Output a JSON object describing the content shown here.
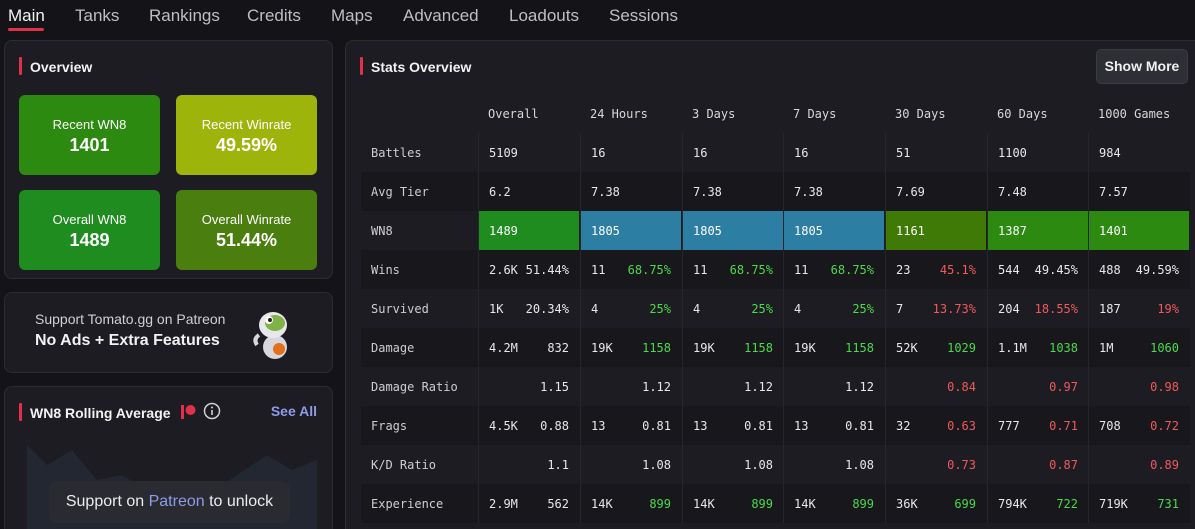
{
  "nav": {
    "tabs": [
      "Main",
      "Tanks",
      "Rankings",
      "Credits",
      "Maps",
      "Advanced",
      "Loadouts",
      "Sessions"
    ],
    "active": "Main"
  },
  "overview": {
    "title": "Overview",
    "tiles": [
      {
        "label": "Recent WN8",
        "value": "1401",
        "color": "#2c8a10"
      },
      {
        "label": "Recent Winrate",
        "value": "49.59%",
        "color": "#9db50a"
      },
      {
        "label": "Overall WN8",
        "value": "1489",
        "color": "#1f8c1f"
      },
      {
        "label": "Overall Winrate",
        "value": "51.44%",
        "color": "#4a7e0f"
      }
    ]
  },
  "patreon": {
    "line1": "Support Tomato.gg on Patreon",
    "line2": "No Ads + Extra Features",
    "icon": "tomato-mascot-icon"
  },
  "rolling": {
    "title": "WN8 Rolling Average",
    "see_all": "See All",
    "unlock_prefix": "Support on ",
    "unlock_link": "Patreon",
    "unlock_suffix": " to unlock",
    "icons": [
      "patreon-icon",
      "info-icon"
    ]
  },
  "stats": {
    "title": "Stats Overview",
    "show_more": "Show More",
    "columns": [
      "Overall",
      "24 Hours",
      "3 Days",
      "7 Days",
      "30 Days",
      "60 Days",
      "1000 Games"
    ],
    "rows": [
      {
        "label": "Battles",
        "cells": [
          [
            "5109",
            ""
          ],
          [
            "16",
            ""
          ],
          [
            "16",
            ""
          ],
          [
            "16",
            ""
          ],
          [
            "51",
            ""
          ],
          [
            "1100",
            ""
          ],
          [
            "984",
            ""
          ]
        ]
      },
      {
        "label": "Avg Tier",
        "cells": [
          [
            "6.2",
            ""
          ],
          [
            "7.38",
            ""
          ],
          [
            "7.38",
            ""
          ],
          [
            "7.38",
            ""
          ],
          [
            "7.69",
            ""
          ],
          [
            "7.48",
            ""
          ],
          [
            "7.57",
            ""
          ]
        ]
      },
      {
        "label": "WN8",
        "cells": [
          [
            "1489",
            ""
          ],
          [
            "1805",
            ""
          ],
          [
            "1805",
            ""
          ],
          [
            "1805",
            ""
          ],
          [
            "1161",
            ""
          ],
          [
            "1387",
            ""
          ],
          [
            "1401",
            ""
          ]
        ],
        "colors": [
          "#1f8c1f",
          "#2c7fa3",
          "#2c7fa3",
          "#2c7fa3",
          "#3f7a07",
          "#2c8a10",
          "#2c8a10"
        ]
      },
      {
        "label": "Wins",
        "cells": [
          [
            "2.6K",
            "51.44%"
          ],
          [
            "11",
            "68.75%"
          ],
          [
            "11",
            "68.75%"
          ],
          [
            "11",
            "68.75%"
          ],
          [
            "23",
            "45.1%"
          ],
          [
            "544",
            "49.45%"
          ],
          [
            "488",
            "49.59%"
          ]
        ],
        "tones": [
          "",
          "g",
          "g",
          "g",
          "r",
          "",
          ""
        ]
      },
      {
        "label": "Survived",
        "cells": [
          [
            "1K",
            "20.34%"
          ],
          [
            "4",
            "25%"
          ],
          [
            "4",
            "25%"
          ],
          [
            "4",
            "25%"
          ],
          [
            "7",
            "13.73%"
          ],
          [
            "204",
            "18.55%"
          ],
          [
            "187",
            "19%"
          ]
        ],
        "tones": [
          "",
          "g",
          "g",
          "g",
          "r",
          "r",
          "r"
        ]
      },
      {
        "label": "Damage",
        "cells": [
          [
            "4.2M",
            "832"
          ],
          [
            "19K",
            "1158"
          ],
          [
            "19K",
            "1158"
          ],
          [
            "19K",
            "1158"
          ],
          [
            "52K",
            "1029"
          ],
          [
            "1.1M",
            "1038"
          ],
          [
            "1M",
            "1060"
          ]
        ],
        "tones": [
          "",
          "g",
          "g",
          "g",
          "g",
          "g",
          "g"
        ]
      },
      {
        "label": "Damage Ratio",
        "cells": [
          [
            "",
            "1.15"
          ],
          [
            "",
            "1.12"
          ],
          [
            "",
            "1.12"
          ],
          [
            "",
            "1.12"
          ],
          [
            "",
            "0.84"
          ],
          [
            "",
            "0.97"
          ],
          [
            "",
            "0.98"
          ]
        ],
        "tones": [
          "",
          "",
          "",
          "",
          "r",
          "r",
          "r"
        ]
      },
      {
        "label": "Frags",
        "cells": [
          [
            "4.5K",
            "0.88"
          ],
          [
            "13",
            "0.81"
          ],
          [
            "13",
            "0.81"
          ],
          [
            "13",
            "0.81"
          ],
          [
            "32",
            "0.63"
          ],
          [
            "777",
            "0.71"
          ],
          [
            "708",
            "0.72"
          ]
        ],
        "tones": [
          "",
          "",
          "",
          "",
          "r",
          "r",
          "r"
        ]
      },
      {
        "label": "K/D Ratio",
        "cells": [
          [
            "",
            "1.1"
          ],
          [
            "",
            "1.08"
          ],
          [
            "",
            "1.08"
          ],
          [
            "",
            "1.08"
          ],
          [
            "",
            "0.73"
          ],
          [
            "",
            "0.87"
          ],
          [
            "",
            "0.89"
          ]
        ],
        "tones": [
          "",
          "",
          "",
          "",
          "r",
          "r",
          "r"
        ]
      },
      {
        "label": "Experience",
        "cells": [
          [
            "2.9M",
            "562"
          ],
          [
            "14K",
            "899"
          ],
          [
            "14K",
            "899"
          ],
          [
            "14K",
            "899"
          ],
          [
            "36K",
            "699"
          ],
          [
            "794K",
            "722"
          ],
          [
            "719K",
            "731"
          ]
        ],
        "tones": [
          "",
          "g",
          "g",
          "g",
          "g",
          "g",
          "g"
        ]
      }
    ]
  }
}
